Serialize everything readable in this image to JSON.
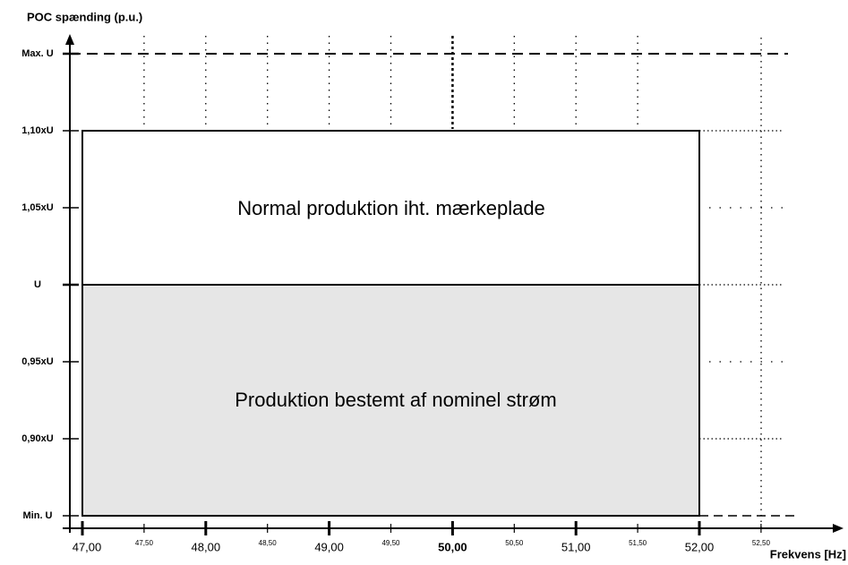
{
  "y_axis": {
    "title": "POC spænding (p.u.)",
    "ticks": [
      "Max. U",
      "1,10xU",
      "1,05xU",
      "U",
      "0,95xU",
      "0,90xU",
      "Min. U"
    ]
  },
  "x_axis": {
    "title": "Frekvens [Hz]",
    "ticks": [
      "47,00",
      "47,50",
      "48,00",
      "48,50",
      "49,00",
      "49,50",
      "50,00",
      "50,50",
      "51,00",
      "51,50",
      "52,00",
      "52,50"
    ]
  },
  "regions": {
    "upper": "Normal produktion iht. mærkeplade",
    "lower": "Produktion bestemt af nominel strøm"
  }
}
